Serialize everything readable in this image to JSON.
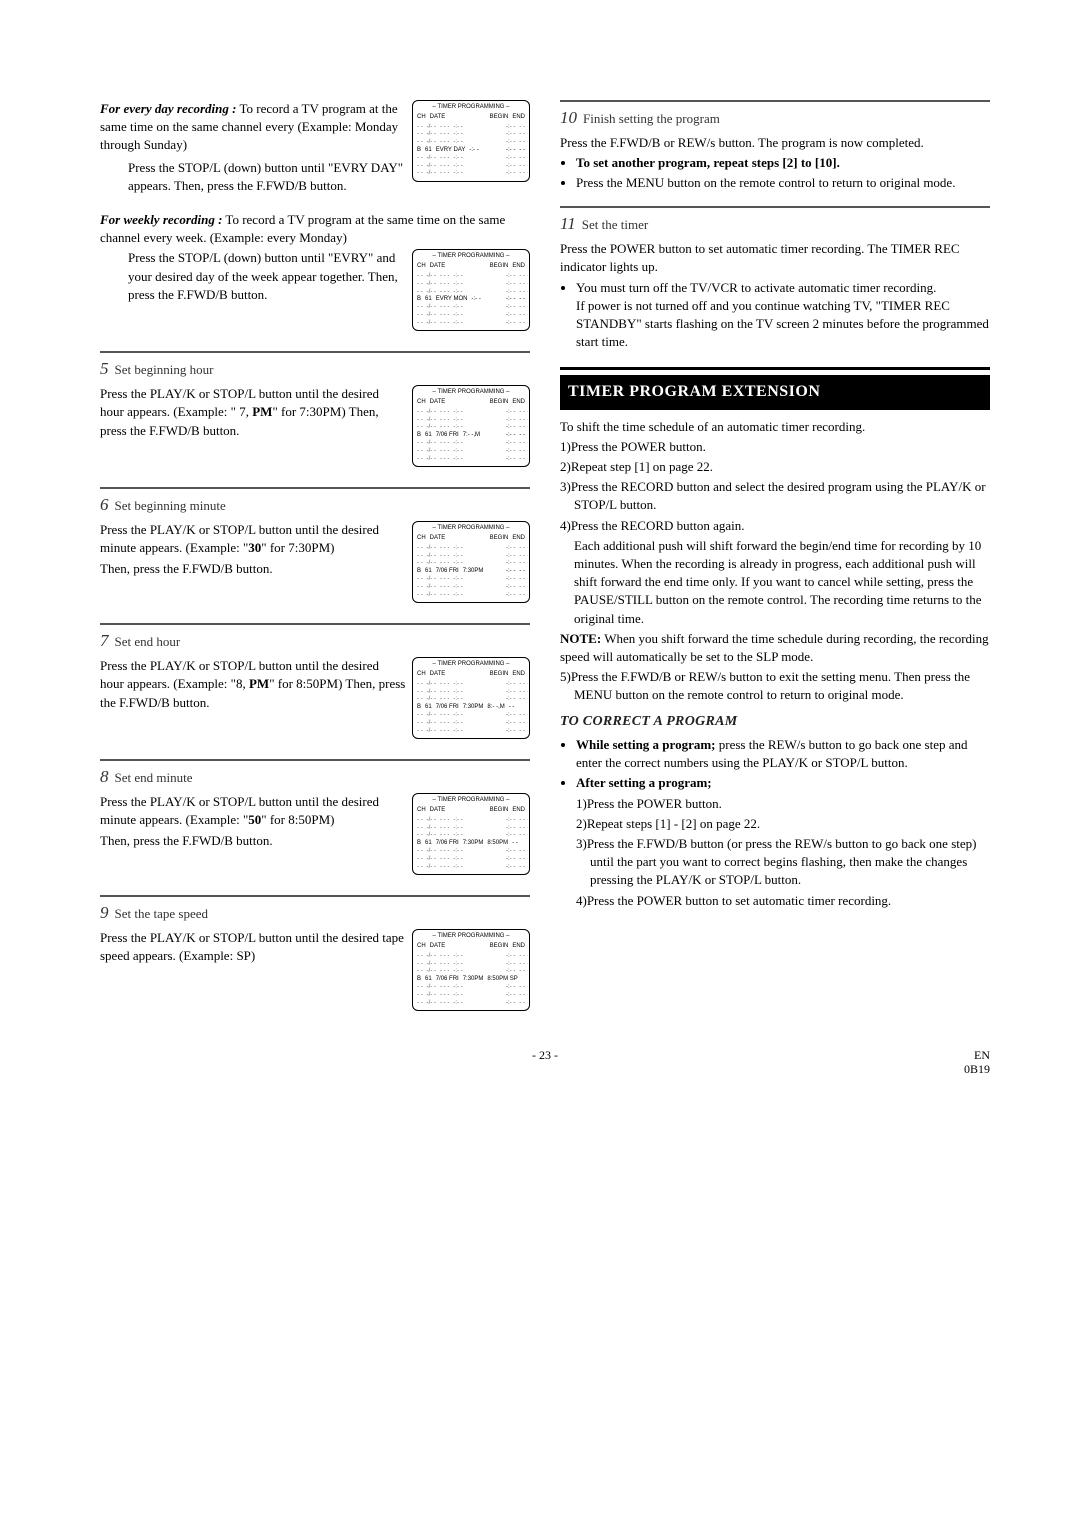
{
  "left": {
    "everyDay": {
      "heading": "For every day recording :",
      "text1": "To record a TV program at the same time on the same channel every (Example: Monday through Sunday)",
      "text2": "Press the STOP/L (down) button until \"EVRY DAY\" appears. Then, press the F.FWD/B button."
    },
    "weekly": {
      "heading": "For weekly recording :",
      "text1": "To record a TV program at the same time on the same channel every week. (Example: every Monday)",
      "text2": "Press the STOP/L (down) button until \"EVRY\" and your desired day of the week appear together. Then, press the F.FWD/B button."
    },
    "step5": {
      "num": "5",
      "title": "Set beginning hour",
      "body": "Press the PLAY/K or STOP/L button until the desired hour appears. (Example: \" 7, PM\" for 7:30PM) Then, press the F.FWD/B button."
    },
    "step6": {
      "num": "6",
      "title": "Set beginning minute",
      "body1": "Press the PLAY/K or STOP/L button until the desired minute appears.  (Example: \"30\" for 7:30PM)",
      "body2": "Then, press the F.FWD/B button."
    },
    "step7": {
      "num": "7",
      "title": "Set end hour",
      "body": "Press the PLAY/K or STOP/L button until the desired hour appears. (Example: \"8, PM\" for 8:50PM) Then, press the F.FWD/B button."
    },
    "step8": {
      "num": "8",
      "title": "Set end minute",
      "body1": "Press the PLAY/K or STOP/L button until the desired minute appears.  (Example: \"50\" for 8:50PM)",
      "body2": "Then, press the F.FWD/B button."
    },
    "step9": {
      "num": "9",
      "title": "Set the tape speed",
      "body": "Press the PLAY/K or STOP/L button until the desired tape speed appears. (Example: SP)"
    }
  },
  "right": {
    "step10": {
      "num": "10",
      "title": "Finish setting the program",
      "p1": "Press the F.FWD/B or REW/s button. The program is now completed.",
      "b1": "To set another program, repeat steps [2] to [10].",
      "b2": "Press the MENU button on the remote control to return to original mode."
    },
    "step11": {
      "num": "11",
      "title": "Set the timer",
      "p1": "Press the POWER button to set automatic timer recording. The TIMER REC indicator lights up.",
      "b1a": "You must turn off the TV/VCR to activate automatic timer recording.",
      "b1b": "If power is not turned off and you continue watching TV, \"TIMER REC STANDBY\" starts flashing on the TV screen 2 minutes before the programmed start time."
    },
    "extension": {
      "header": "TIMER PROGRAM EXTENSION",
      "intro": "To shift the time schedule of an automatic timer recording.",
      "s1": "1)Press the POWER button.",
      "s2": "2)Repeat step [1] on page 22.",
      "s3": "3)Press the RECORD button and select the desired program using the PLAY/K or STOP/L button.",
      "s4a": "4)Press the RECORD button again.",
      "s4b": "Each additional push will shift forward the begin/end time for recording by 10 minutes. When the recording is already in progress, each additional push will shift forward the end time only. If you want to cancel while setting, press the PAUSE/STILL button on the remote control. The recording time returns to the original time.",
      "note": "NOTE: When you shift forward the time schedule during recording, the recording speed will automatically be set to the SLP mode.",
      "s5": "5)Press the F.FWD/B or REW/s button to exit the setting menu. Then press the MENU button on the remote control to return to original mode."
    },
    "correct": {
      "header": "TO CORRECT A PROGRAM",
      "b1lead": "While setting a program;",
      "b1rest": " press the REW/s button to go back one step and enter the correct numbers using the PLAY/K or STOP/L button.",
      "b2lead": "After setting a program;",
      "s1": "1)Press the POWER button.",
      "s2": "2)Repeat steps [1] - [2] on page 22.",
      "s3": "3)Press the F.FWD/B button (or press the REW/s button to go back one step) until the part you want to correct begins flashing, then make the changes pressing the PLAY/K or STOP/L button.",
      "s4": "4)Press the POWER button to set automatic timer recording."
    }
  },
  "timer": {
    "title": "– TIMER PROGRAMMING –",
    "hCH": "CH",
    "hDATE": "DATE",
    "hBEGIN": "BEGIN",
    "hEND": "END",
    "dash2": "- -",
    "dash3": "- - -",
    "dashd": "-/- -",
    "dasht": "-:- -",
    "row1": {
      "ch": "61",
      "date": "EVRY DAY"
    },
    "row2": {
      "ch": "61",
      "date": "EVRY MON"
    },
    "row3": {
      "ch": "61",
      "date": "7/06  FRI",
      "begin": "7:- -,M"
    },
    "row4": {
      "ch": "61",
      "date": "7/06  FRI",
      "begin": "7:30PM"
    },
    "row5": {
      "ch": "61",
      "date": "7/06  FRI",
      "begin": "7:30PM",
      "end": "8:- -,M"
    },
    "row6": {
      "ch": "61",
      "date": "7/06  FRI",
      "begin": "7:30PM",
      "end": "8:50PM"
    },
    "row7": {
      "ch": "61",
      "date": "7/06  FRI",
      "begin": "7:30PM",
      "end": "8:50PM SP"
    }
  },
  "footer": {
    "page": "- 23 -",
    "en": "EN",
    "code": "0B19"
  }
}
